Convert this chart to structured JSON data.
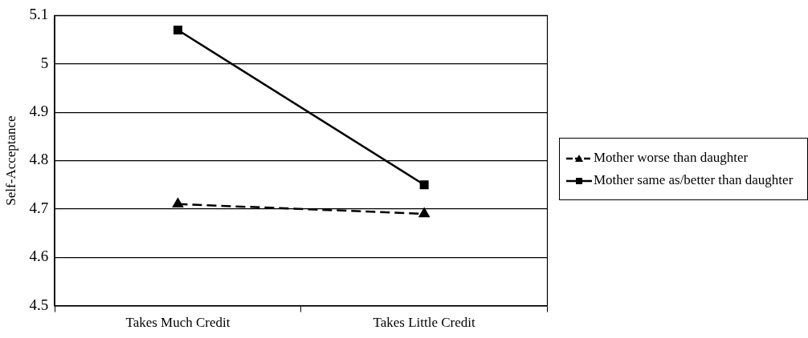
{
  "chart_data": {
    "type": "line",
    "ylabel": "Self-Acceptance",
    "categories": [
      "Takes Much Credit",
      "Takes Little Credit"
    ],
    "series": [
      {
        "name": "Mother worse than daughter",
        "color": "#000000",
        "values": [
          4.71,
          4.69
        ],
        "marker": "triangle",
        "line_style": "dashed"
      },
      {
        "name": "Mother same as/better than daughter",
        "color": "#000000",
        "values": [
          5.07,
          4.75
        ],
        "marker": "square",
        "line_style": "solid"
      }
    ],
    "ylim": [
      4.5,
      5.1
    ],
    "yticks": [
      4.5,
      4.6,
      4.7,
      4.8,
      4.9,
      5,
      5.1
    ],
    "grid": "y",
    "legend": "right"
  }
}
